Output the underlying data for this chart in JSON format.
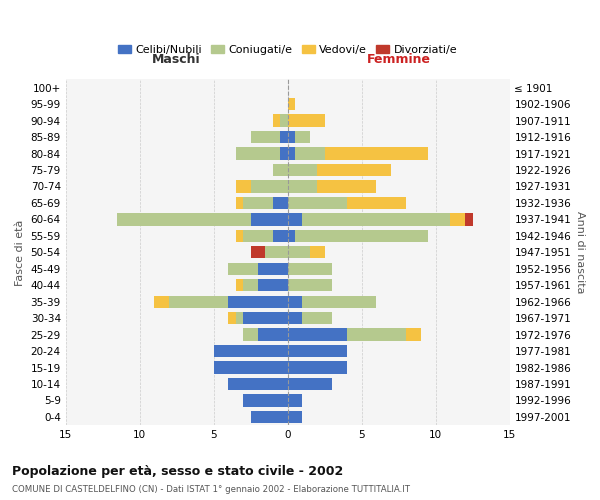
{
  "age_groups": [
    "0-4",
    "5-9",
    "10-14",
    "15-19",
    "20-24",
    "25-29",
    "30-34",
    "35-39",
    "40-44",
    "45-49",
    "50-54",
    "55-59",
    "60-64",
    "65-69",
    "70-74",
    "75-79",
    "80-84",
    "85-89",
    "90-94",
    "95-99",
    "100+"
  ],
  "birth_years": [
    "1997-2001",
    "1992-1996",
    "1987-1991",
    "1982-1986",
    "1977-1981",
    "1972-1976",
    "1967-1971",
    "1962-1966",
    "1957-1961",
    "1952-1956",
    "1947-1951",
    "1942-1946",
    "1937-1941",
    "1932-1936",
    "1927-1931",
    "1922-1926",
    "1917-1921",
    "1912-1916",
    "1907-1911",
    "1902-1906",
    "≤ 1901"
  ],
  "males": {
    "celibi": [
      2.5,
      3,
      4,
      5,
      5,
      2,
      3,
      4,
      2,
      2,
      0,
      1,
      2.5,
      1,
      0,
      0,
      0.5,
      0.5,
      0,
      0,
      0
    ],
    "coniugati": [
      0,
      0,
      0,
      0,
      0,
      1,
      0.5,
      4,
      1,
      2,
      1.5,
      2,
      9,
      2,
      2.5,
      1,
      3,
      2,
      0.5,
      0,
      0
    ],
    "vedovi": [
      0,
      0,
      0,
      0,
      0,
      0,
      0.5,
      1,
      0.5,
      0,
      0,
      0.5,
      0,
      0.5,
      1,
      0,
      0,
      0,
      0.5,
      0,
      0
    ],
    "divorziati": [
      0,
      0,
      0,
      0,
      0,
      0,
      0,
      0,
      0,
      0,
      1,
      0,
      0,
      0,
      0,
      0,
      0,
      0,
      0,
      0,
      0
    ]
  },
  "females": {
    "nubili": [
      1,
      1,
      3,
      4,
      4,
      4,
      1,
      1,
      0,
      0,
      0,
      0.5,
      1,
      0,
      0,
      0,
      0.5,
      0.5,
      0,
      0,
      0
    ],
    "coniugate": [
      0,
      0,
      0,
      0,
      0,
      4,
      2,
      5,
      3,
      3,
      1.5,
      9,
      10,
      4,
      2,
      2,
      2,
      1,
      0,
      0,
      0
    ],
    "vedove": [
      0,
      0,
      0,
      0,
      0,
      1,
      0,
      0,
      0,
      0,
      1,
      0,
      1,
      4,
      4,
      5,
      7,
      0,
      2.5,
      0.5,
      0
    ],
    "divorziate": [
      0,
      0,
      0,
      0,
      0,
      0,
      0,
      0,
      0,
      0,
      0,
      0,
      0.5,
      0,
      0,
      0,
      0,
      0,
      0,
      0,
      0
    ]
  },
  "colors": {
    "celibi_nubili": "#4472c4",
    "coniugati": "#b5c98e",
    "vedovi": "#f5c242",
    "divorziati": "#c0392b"
  },
  "xlim": 15,
  "title": "Popolazione per età, sesso e stato civile - 2002",
  "subtitle": "COMUNE DI CASTELDELFINO (CN) - Dati ISTAT 1° gennaio 2002 - Elaborazione TUTTITALIA.IT",
  "xlabel_left": "Maschi",
  "xlabel_right": "Femmine",
  "ylabel_left": "Fasce di età",
  "ylabel_right": "Anni di nascita",
  "legend_labels": [
    "Celibi/Nubili",
    "Coniugati/e",
    "Vedovi/e",
    "Divorziati/e"
  ],
  "bg_color": "#f5f5f5",
  "grid_color": "#cccccc"
}
